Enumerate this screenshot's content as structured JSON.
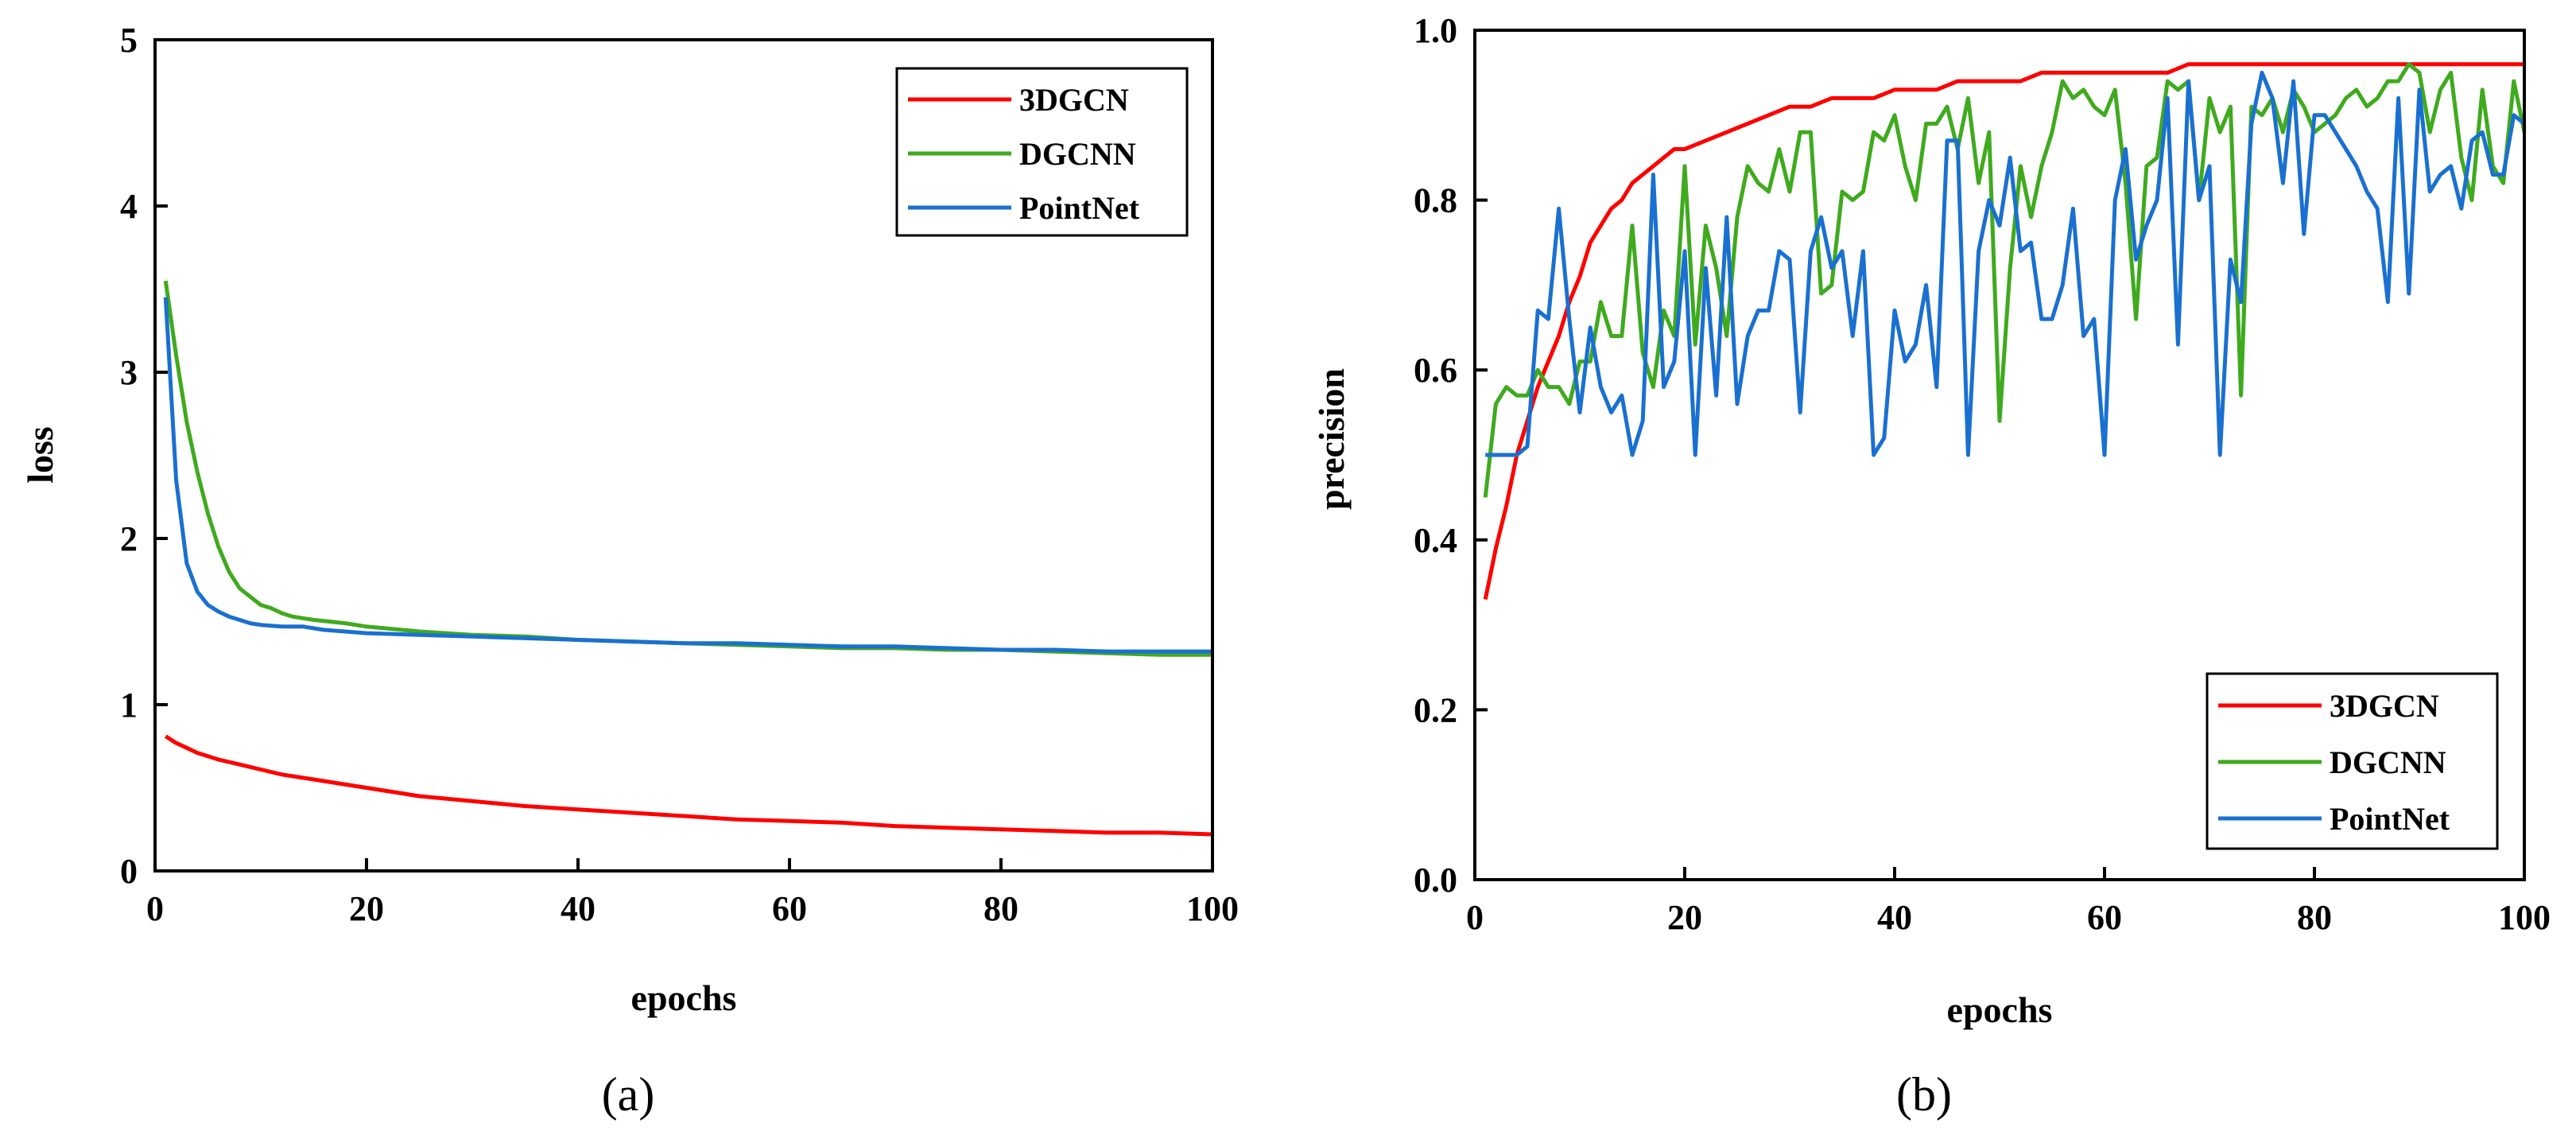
{
  "chart_data": [
    {
      "type": "line",
      "panel_label": "(a)",
      "xlabel": "epochs",
      "ylabel": "loss",
      "xlim": [
        0,
        100
      ],
      "ylim": [
        0,
        5
      ],
      "xticks": [
        "0",
        "20",
        "40",
        "60",
        "80",
        "100"
      ],
      "yticks": [
        "0",
        "1",
        "2",
        "3",
        "4",
        "5"
      ],
      "legend_position": "top-right",
      "series": [
        {
          "name": "3DGCN",
          "color": "#ff0000",
          "x": [
            1,
            2,
            3,
            4,
            5,
            6,
            8,
            10,
            12,
            15,
            20,
            25,
            30,
            35,
            40,
            45,
            50,
            55,
            60,
            65,
            70,
            75,
            80,
            85,
            90,
            95,
            100
          ],
          "y": [
            0.81,
            0.77,
            0.74,
            0.71,
            0.69,
            0.67,
            0.64,
            0.61,
            0.58,
            0.55,
            0.5,
            0.45,
            0.42,
            0.39,
            0.37,
            0.35,
            0.33,
            0.31,
            0.3,
            0.29,
            0.27,
            0.26,
            0.25,
            0.24,
            0.23,
            0.23,
            0.22
          ]
        },
        {
          "name": "DGCNN",
          "color": "#3faa1e",
          "x": [
            1,
            2,
            3,
            4,
            5,
            6,
            7,
            8,
            9,
            10,
            11,
            12,
            13,
            14,
            15,
            18,
            20,
            25,
            30,
            35,
            40,
            45,
            50,
            55,
            60,
            65,
            70,
            75,
            80,
            85,
            90,
            95,
            100
          ],
          "y": [
            3.55,
            3.1,
            2.7,
            2.4,
            2.15,
            1.95,
            1.8,
            1.7,
            1.65,
            1.6,
            1.58,
            1.55,
            1.53,
            1.52,
            1.51,
            1.49,
            1.47,
            1.44,
            1.42,
            1.41,
            1.39,
            1.38,
            1.37,
            1.36,
            1.35,
            1.34,
            1.34,
            1.33,
            1.33,
            1.32,
            1.31,
            1.3,
            1.3
          ]
        },
        {
          "name": "PointNet",
          "color": "#1a70d0",
          "x": [
            1,
            2,
            3,
            4,
            5,
            6,
            7,
            8,
            9,
            10,
            12,
            14,
            16,
            18,
            20,
            25,
            30,
            35,
            40,
            45,
            50,
            55,
            60,
            65,
            70,
            75,
            80,
            85,
            90,
            95,
            100
          ],
          "y": [
            3.45,
            2.35,
            1.85,
            1.68,
            1.6,
            1.56,
            1.53,
            1.51,
            1.49,
            1.48,
            1.47,
            1.47,
            1.45,
            1.44,
            1.43,
            1.42,
            1.41,
            1.4,
            1.39,
            1.38,
            1.37,
            1.37,
            1.36,
            1.35,
            1.35,
            1.34,
            1.33,
            1.33,
            1.32,
            1.32,
            1.32
          ]
        }
      ]
    },
    {
      "type": "line",
      "panel_label": "(b)",
      "xlabel": "epochs",
      "ylabel": "precision",
      "xlim": [
        0,
        100
      ],
      "ylim": [
        0,
        1.0
      ],
      "xticks": [
        "0",
        "20",
        "40",
        "60",
        "80",
        "100"
      ],
      "yticks": [
        "0.0",
        "0.2",
        "0.4",
        "0.6",
        "0.8",
        "1.0"
      ],
      "legend_position": "bottom-right",
      "series": [
        {
          "name": "3DGCN",
          "color": "#ff0000",
          "x": [
            1,
            2,
            3,
            4,
            5,
            6,
            7,
            8,
            9,
            10,
            11,
            12,
            13,
            14,
            15,
            16,
            17,
            18,
            19,
            20,
            22,
            24,
            26,
            28,
            30,
            32,
            34,
            36,
            38,
            40,
            42,
            44,
            46,
            48,
            50,
            52,
            54,
            56,
            58,
            60,
            62,
            64,
            66,
            68,
            70,
            72,
            74,
            76,
            78,
            80,
            82,
            84,
            86,
            88,
            90,
            92,
            94,
            96,
            98,
            100
          ],
          "y": [
            0.33,
            0.39,
            0.44,
            0.5,
            0.54,
            0.58,
            0.61,
            0.64,
            0.68,
            0.71,
            0.75,
            0.77,
            0.79,
            0.8,
            0.82,
            0.83,
            0.84,
            0.85,
            0.86,
            0.86,
            0.87,
            0.88,
            0.89,
            0.9,
            0.91,
            0.91,
            0.92,
            0.92,
            0.92,
            0.93,
            0.93,
            0.93,
            0.94,
            0.94,
            0.94,
            0.94,
            0.95,
            0.95,
            0.95,
            0.95,
            0.95,
            0.95,
            0.95,
            0.96,
            0.96,
            0.96,
            0.96,
            0.96,
            0.96,
            0.96,
            0.96,
            0.96,
            0.96,
            0.96,
            0.96,
            0.96,
            0.96,
            0.96,
            0.96,
            0.96
          ]
        },
        {
          "name": "DGCNN",
          "color": "#3faa1e",
          "x": [
            1,
            2,
            3,
            4,
            5,
            6,
            7,
            8,
            9,
            10,
            11,
            12,
            13,
            14,
            15,
            16,
            17,
            18,
            19,
            20,
            21,
            22,
            23,
            24,
            25,
            26,
            27,
            28,
            29,
            30,
            31,
            32,
            33,
            34,
            35,
            36,
            37,
            38,
            39,
            40,
            41,
            42,
            43,
            44,
            45,
            46,
            47,
            48,
            49,
            50,
            51,
            52,
            53,
            54,
            55,
            56,
            57,
            58,
            59,
            60,
            61,
            62,
            63,
            64,
            65,
            66,
            67,
            68,
            69,
            70,
            71,
            72,
            73,
            74,
            75,
            76,
            77,
            78,
            79,
            80,
            81,
            82,
            83,
            84,
            85,
            86,
            87,
            88,
            89,
            90,
            91,
            92,
            93,
            94,
            95,
            96,
            97,
            98,
            99,
            100
          ],
          "y": [
            0.45,
            0.56,
            0.58,
            0.57,
            0.57,
            0.6,
            0.58,
            0.58,
            0.56,
            0.61,
            0.61,
            0.68,
            0.64,
            0.64,
            0.77,
            0.62,
            0.58,
            0.67,
            0.64,
            0.84,
            0.63,
            0.77,
            0.72,
            0.64,
            0.78,
            0.84,
            0.82,
            0.81,
            0.86,
            0.81,
            0.88,
            0.88,
            0.69,
            0.7,
            0.81,
            0.8,
            0.81,
            0.88,
            0.87,
            0.9,
            0.84,
            0.8,
            0.89,
            0.89,
            0.91,
            0.86,
            0.92,
            0.82,
            0.88,
            0.54,
            0.72,
            0.84,
            0.78,
            0.84,
            0.88,
            0.94,
            0.92,
            0.93,
            0.91,
            0.9,
            0.93,
            0.82,
            0.66,
            0.84,
            0.85,
            0.94,
            0.93,
            0.94,
            0.8,
            0.92,
            0.88,
            0.91,
            0.57,
            0.91,
            0.9,
            0.92,
            0.88,
            0.93,
            0.91,
            0.88,
            0.89,
            0.9,
            0.92,
            0.93,
            0.91,
            0.92,
            0.94,
            0.94,
            0.96,
            0.95,
            0.88,
            0.93,
            0.95,
            0.85,
            0.8,
            0.93,
            0.84,
            0.82,
            0.94,
            0.88
          ]
        },
        {
          "name": "PointNet",
          "color": "#1a70d0",
          "x": [
            1,
            2,
            3,
            4,
            5,
            6,
            7,
            8,
            9,
            10,
            11,
            12,
            13,
            14,
            15,
            16,
            17,
            18,
            19,
            20,
            21,
            22,
            23,
            24,
            25,
            26,
            27,
            28,
            29,
            30,
            31,
            32,
            33,
            34,
            35,
            36,
            37,
            38,
            39,
            40,
            41,
            42,
            43,
            44,
            45,
            46,
            47,
            48,
            49,
            50,
            51,
            52,
            53,
            54,
            55,
            56,
            57,
            58,
            59,
            60,
            61,
            62,
            63,
            64,
            65,
            66,
            67,
            68,
            69,
            70,
            71,
            72,
            73,
            74,
            75,
            76,
            77,
            78,
            79,
            80,
            81,
            82,
            83,
            84,
            85,
            86,
            87,
            88,
            89,
            90,
            91,
            92,
            93,
            94,
            95,
            96,
            97,
            98,
            99,
            100
          ],
          "y": [
            0.5,
            0.5,
            0.5,
            0.5,
            0.51,
            0.67,
            0.66,
            0.79,
            0.66,
            0.55,
            0.65,
            0.58,
            0.55,
            0.57,
            0.5,
            0.54,
            0.83,
            0.58,
            0.61,
            0.74,
            0.5,
            0.72,
            0.57,
            0.78,
            0.56,
            0.64,
            0.67,
            0.67,
            0.74,
            0.73,
            0.55,
            0.74,
            0.78,
            0.72,
            0.74,
            0.64,
            0.74,
            0.5,
            0.52,
            0.67,
            0.61,
            0.63,
            0.7,
            0.58,
            0.87,
            0.87,
            0.5,
            0.74,
            0.8,
            0.77,
            0.85,
            0.74,
            0.75,
            0.66,
            0.66,
            0.7,
            0.79,
            0.64,
            0.66,
            0.5,
            0.8,
            0.86,
            0.73,
            0.77,
            0.8,
            0.92,
            0.63,
            0.94,
            0.8,
            0.84,
            0.5,
            0.73,
            0.68,
            0.89,
            0.95,
            0.92,
            0.82,
            0.94,
            0.76,
            0.9,
            0.9,
            0.88,
            0.86,
            0.84,
            0.81,
            0.79,
            0.68,
            0.92,
            0.69,
            0.93,
            0.81,
            0.83,
            0.84,
            0.79,
            0.87,
            0.88,
            0.83,
            0.83,
            0.9,
            0.89
          ]
        }
      ]
    }
  ]
}
